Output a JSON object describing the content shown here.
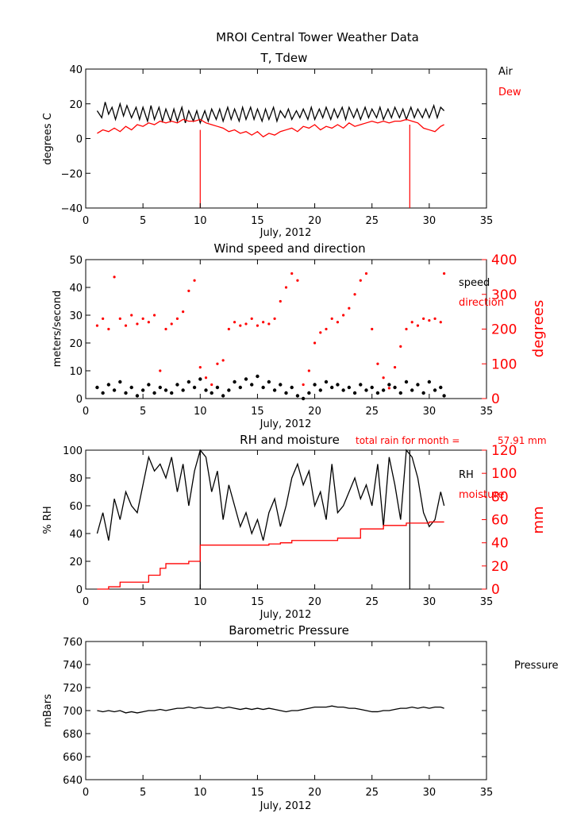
{
  "title": "MROI Central Tower Weather Data",
  "colors": {
    "black": "#000000",
    "red": "#ff0000"
  },
  "chart_data": [
    {
      "id": "temp",
      "type": "line",
      "title": "T, Tdew",
      "xlabel": "July, 2012",
      "ylabel": "degrees C",
      "xlim": [
        0,
        35
      ],
      "ylim": [
        -40,
        40
      ],
      "xticks": [
        "0",
        "5",
        "10",
        "15",
        "20",
        "25",
        "30",
        "35"
      ],
      "yticks": [
        "−40",
        "−20",
        "0",
        "20",
        "40"
      ],
      "legend": [
        {
          "text": "Air",
          "color": "#000000"
        },
        {
          "text": "Dew",
          "color": "#ff0000"
        }
      ],
      "series": [
        {
          "name": "Air",
          "color": "#000000",
          "x": [
            1.0,
            1.4,
            1.7,
            2.0,
            2.3,
            2.6,
            3.0,
            3.3,
            3.6,
            4.0,
            4.4,
            4.7,
            5.0,
            5.4,
            5.7,
            6.0,
            6.4,
            6.7,
            7.0,
            7.4,
            7.7,
            8.0,
            8.4,
            8.7,
            9.0,
            9.4,
            9.7,
            10.0,
            10.4,
            10.7,
            11.0,
            11.4,
            11.7,
            12.0,
            12.4,
            12.7,
            13.0,
            13.4,
            13.7,
            14.0,
            14.4,
            14.7,
            15.0,
            15.4,
            15.7,
            16.0,
            16.4,
            16.7,
            17.0,
            17.4,
            17.7,
            18.0,
            18.4,
            18.7,
            19.0,
            19.4,
            19.7,
            20.0,
            20.4,
            20.7,
            21.0,
            21.4,
            21.7,
            22.0,
            22.4,
            22.7,
            23.0,
            23.4,
            23.7,
            24.0,
            24.4,
            24.7,
            25.0,
            25.4,
            25.7,
            26.0,
            26.4,
            26.7,
            27.0,
            27.4,
            27.7,
            28.0,
            28.4,
            28.7,
            29.0,
            29.4,
            29.7,
            30.0,
            30.4,
            30.7,
            31.0,
            31.3
          ],
          "y": [
            16,
            12,
            21,
            14,
            18,
            11,
            20,
            13,
            19,
            12,
            18,
            11,
            18,
            10,
            19,
            11,
            18,
            10,
            17,
            10,
            17,
            10,
            18,
            9,
            16,
            10,
            16,
            9,
            16,
            10,
            17,
            11,
            17,
            10,
            18,
            11,
            17,
            10,
            18,
            11,
            18,
            11,
            17,
            10,
            17,
            11,
            18,
            10,
            16,
            12,
            17,
            11,
            16,
            12,
            17,
            11,
            18,
            11,
            17,
            12,
            18,
            11,
            17,
            12,
            18,
            11,
            18,
            12,
            17,
            11,
            18,
            12,
            17,
            12,
            18,
            11,
            17,
            12,
            18,
            12,
            17,
            11,
            18,
            12,
            17,
            12,
            17,
            12,
            19,
            12,
            18,
            16
          ]
        },
        {
          "name": "Dew",
          "color": "#ff0000",
          "x": [
            1.0,
            1.5,
            2.0,
            2.5,
            3.0,
            3.5,
            4.0,
            4.5,
            5.0,
            5.5,
            6.0,
            6.5,
            7.0,
            7.5,
            8.0,
            8.5,
            9.0,
            9.5,
            10.0,
            10.5,
            11.0,
            11.5,
            12.0,
            12.5,
            13.0,
            13.5,
            14.0,
            14.5,
            15.0,
            15.5,
            16.0,
            16.5,
            17.0,
            17.5,
            18.0,
            18.5,
            19.0,
            19.5,
            20.0,
            20.5,
            21.0,
            21.5,
            22.0,
            22.5,
            23.0,
            23.5,
            24.0,
            24.5,
            25.0,
            25.5,
            26.0,
            26.5,
            27.0,
            27.5,
            28.0,
            28.5,
            29.0,
            29.5,
            30.0,
            30.5,
            31.0,
            31.3
          ],
          "y": [
            3,
            5,
            4,
            6,
            4,
            7,
            5,
            8,
            7,
            9,
            8,
            10,
            9,
            10,
            9,
            11,
            10,
            10,
            11,
            9,
            8,
            7,
            6,
            4,
            5,
            3,
            4,
            2,
            4,
            1,
            3,
            2,
            4,
            5,
            6,
            4,
            7,
            6,
            8,
            5,
            7,
            6,
            8,
            6,
            9,
            7,
            8,
            9,
            10,
            9,
            10,
            9,
            10,
            10,
            11,
            10,
            9,
            6,
            5,
            4,
            7,
            8
          ]
        }
      ],
      "spikes": [
        {
          "x": 10.0,
          "from": -40,
          "to": 5,
          "color": "#ff0000"
        },
        {
          "x": 28.3,
          "from": -40,
          "to": 8,
          "color": "#ff0000"
        }
      ]
    },
    {
      "id": "wind",
      "type": "scatter",
      "title": "Wind speed and direction",
      "xlabel": "July, 2012",
      "ylabel": "meters/second",
      "ylabel_right": "degrees",
      "xlim": [
        0,
        35
      ],
      "ylim": [
        0,
        50
      ],
      "ylim_right": [
        0,
        400
      ],
      "xticks": [
        "0",
        "5",
        "10",
        "15",
        "20",
        "25",
        "30",
        "35"
      ],
      "yticks": [
        "0",
        "10",
        "20",
        "30",
        "40",
        "50"
      ],
      "yticks_right": [
        "0",
        "100",
        "200",
        "300",
        "400"
      ],
      "legend": [
        {
          "text": "speed",
          "color": "#000000"
        },
        {
          "text": "direction",
          "color": "#ff0000"
        }
      ],
      "series": [
        {
          "name": "speed",
          "color": "#000000",
          "x": [
            1.0,
            1.5,
            2.0,
            2.5,
            3.0,
            3.5,
            4.0,
            4.5,
            5.0,
            5.5,
            6.0,
            6.5,
            7.0,
            7.5,
            8.0,
            8.5,
            9.0,
            9.5,
            10.0,
            10.5,
            11.0,
            11.5,
            12.0,
            12.5,
            13.0,
            13.5,
            14.0,
            14.5,
            15.0,
            15.5,
            16.0,
            16.5,
            17.0,
            17.5,
            18.0,
            18.5,
            19.0,
            19.5,
            20.0,
            20.5,
            21.0,
            21.5,
            22.0,
            22.5,
            23.0,
            23.5,
            24.0,
            24.5,
            25.0,
            25.5,
            26.0,
            26.5,
            27.0,
            27.5,
            28.0,
            28.5,
            29.0,
            29.5,
            30.0,
            30.5,
            31.0,
            31.3
          ],
          "y": [
            4,
            2,
            5,
            3,
            6,
            2,
            4,
            1,
            3,
            5,
            2,
            4,
            3,
            2,
            5,
            3,
            6,
            4,
            7,
            3,
            2,
            4,
            1,
            3,
            6,
            4,
            7,
            5,
            8,
            4,
            6,
            3,
            5,
            2,
            4,
            1,
            0,
            2,
            5,
            3,
            6,
            4,
            5,
            3,
            4,
            2,
            5,
            3,
            4,
            2,
            3,
            5,
            4,
            2,
            6,
            3,
            5,
            2,
            6,
            3,
            4,
            1
          ]
        },
        {
          "name": "direction",
          "color": "#ff0000",
          "axis": "right",
          "x": [
            1.0,
            1.5,
            2.0,
            2.5,
            3.0,
            3.5,
            4.0,
            4.5,
            5.0,
            5.5,
            6.0,
            6.5,
            7.0,
            7.5,
            8.0,
            8.5,
            9.0,
            9.5,
            10.0,
            10.5,
            11.0,
            11.5,
            12.0,
            12.5,
            13.0,
            13.5,
            14.0,
            14.5,
            15.0,
            15.5,
            16.0,
            16.5,
            17.0,
            17.5,
            18.0,
            18.5,
            19.0,
            19.5,
            20.0,
            20.5,
            21.0,
            21.5,
            22.0,
            22.5,
            23.0,
            23.5,
            24.0,
            24.5,
            25.0,
            25.5,
            26.0,
            26.5,
            27.0,
            27.5,
            28.0,
            28.5,
            29.0,
            29.5,
            30.0,
            30.5,
            31.0,
            31.3
          ],
          "y": [
            210,
            230,
            200,
            350,
            230,
            210,
            240,
            215,
            230,
            220,
            240,
            80,
            200,
            215,
            230,
            250,
            310,
            340,
            90,
            60,
            40,
            100,
            110,
            200,
            220,
            210,
            215,
            230,
            210,
            220,
            215,
            230,
            280,
            320,
            360,
            340,
            40,
            80,
            160,
            190,
            200,
            230,
            220,
            240,
            260,
            300,
            340,
            360,
            200,
            100,
            60,
            30,
            90,
            150,
            200,
            220,
            210,
            230,
            225,
            230,
            220,
            360
          ]
        }
      ]
    },
    {
      "id": "rh",
      "type": "line",
      "title": "RH and moisture",
      "annotation_label": "total rain for month =",
      "annotation_value": "57.91 mm",
      "xlabel": "July, 2012",
      "ylabel": "% RH",
      "ylabel_right": "mm",
      "xlim": [
        0,
        35
      ],
      "ylim": [
        0,
        100
      ],
      "ylim_right": [
        0,
        120
      ],
      "xticks": [
        "0",
        "5",
        "10",
        "15",
        "20",
        "25",
        "30",
        "35"
      ],
      "yticks": [
        "0",
        "20",
        "40",
        "60",
        "80",
        "100"
      ],
      "yticks_right": [
        "0",
        "20",
        "40",
        "60",
        "80",
        "100",
        "120"
      ],
      "legend": [
        {
          "text": "RH",
          "color": "#000000"
        },
        {
          "text": "moisture",
          "color": "#ff0000"
        }
      ],
      "series": [
        {
          "name": "RH",
          "color": "#000000",
          "x": [
            1.0,
            1.5,
            2.0,
            2.5,
            3.0,
            3.5,
            4.0,
            4.5,
            5.0,
            5.5,
            6.0,
            6.5,
            7.0,
            7.5,
            8.0,
            8.5,
            9.0,
            9.5,
            10.0,
            10.5,
            11.0,
            11.5,
            12.0,
            12.5,
            13.0,
            13.5,
            14.0,
            14.5,
            15.0,
            15.5,
            16.0,
            16.5,
            17.0,
            17.5,
            18.0,
            18.5,
            19.0,
            19.5,
            20.0,
            20.5,
            21.0,
            21.5,
            22.0,
            22.5,
            23.0,
            23.5,
            24.0,
            24.5,
            25.0,
            25.5,
            26.0,
            26.5,
            27.0,
            27.5,
            28.0,
            28.5,
            29.0,
            29.5,
            30.0,
            30.5,
            31.0,
            31.3
          ],
          "y": [
            40,
            55,
            35,
            65,
            50,
            70,
            60,
            55,
            75,
            95,
            85,
            90,
            80,
            95,
            70,
            90,
            60,
            85,
            100,
            95,
            70,
            85,
            50,
            75,
            60,
            45,
            55,
            40,
            50,
            35,
            55,
            65,
            45,
            60,
            80,
            90,
            75,
            85,
            60,
            70,
            50,
            90,
            55,
            60,
            70,
            80,
            65,
            75,
            60,
            90,
            45,
            95,
            75,
            50,
            100,
            95,
            80,
            55,
            45,
            50,
            70,
            60
          ]
        },
        {
          "name": "moisture",
          "color": "#ff0000",
          "axis": "right",
          "step": true,
          "x": [
            1.0,
            2.0,
            3.0,
            4.0,
            5.0,
            5.5,
            6.0,
            6.5,
            7.0,
            8.0,
            9.0,
            9.9,
            10.0,
            11.0,
            12.0,
            14.0,
            16.0,
            17.0,
            18.0,
            20.0,
            22.0,
            23.0,
            24.0,
            25.0,
            26.0,
            27.0,
            28.0,
            29.0,
            30.0,
            31.3
          ],
          "y": [
            0,
            2,
            6,
            6,
            6,
            12,
            12,
            18,
            22,
            22,
            24,
            24,
            38,
            38,
            38,
            38,
            39,
            40,
            42,
            42,
            44,
            44,
            52,
            52,
            55,
            55,
            57,
            57,
            58,
            58
          ]
        }
      ],
      "spikes": [
        {
          "x": 10.0,
          "from": 0,
          "to": 100,
          "color": "#000000"
        },
        {
          "x": 28.3,
          "from": 0,
          "to": 100,
          "color": "#000000"
        }
      ]
    },
    {
      "id": "pressure",
      "type": "line",
      "title": "Barometric Pressure",
      "xlabel": "July, 2012",
      "ylabel": "mBars",
      "xlim": [
        0,
        35
      ],
      "ylim": [
        640,
        760
      ],
      "xticks": [
        "0",
        "5",
        "10",
        "15",
        "20",
        "25",
        "30",
        "35"
      ],
      "yticks": [
        "640",
        "660",
        "680",
        "700",
        "720",
        "740",
        "760"
      ],
      "legend": [
        {
          "text": "Pressure",
          "color": "#000000"
        }
      ],
      "series": [
        {
          "name": "Pressure",
          "color": "#000000",
          "x": [
            1.0,
            1.5,
            2.0,
            2.5,
            3.0,
            3.5,
            4.0,
            4.5,
            5.0,
            5.5,
            6.0,
            6.5,
            7.0,
            7.5,
            8.0,
            8.5,
            9.0,
            9.5,
            10.0,
            10.5,
            11.0,
            11.5,
            12.0,
            12.5,
            13.0,
            13.5,
            14.0,
            14.5,
            15.0,
            15.5,
            16.0,
            16.5,
            17.0,
            17.5,
            18.0,
            18.5,
            19.0,
            19.5,
            20.0,
            20.5,
            21.0,
            21.5,
            22.0,
            22.5,
            23.0,
            23.5,
            24.0,
            24.5,
            25.0,
            25.5,
            26.0,
            26.5,
            27.0,
            27.5,
            28.0,
            28.5,
            29.0,
            29.5,
            30.0,
            30.5,
            31.0,
            31.3
          ],
          "y": [
            700,
            699,
            700,
            699,
            700,
            698,
            699,
            698,
            699,
            700,
            700,
            701,
            700,
            701,
            702,
            702,
            703,
            702,
            703,
            702,
            702,
            703,
            702,
            703,
            702,
            701,
            702,
            701,
            702,
            701,
            702,
            701,
            700,
            699,
            700,
            700,
            701,
            702,
            703,
            703,
            703,
            704,
            703,
            703,
            702,
            702,
            701,
            700,
            699,
            699,
            700,
            700,
            701,
            702,
            702,
            703,
            702,
            703,
            702,
            703,
            703,
            702
          ]
        }
      ]
    }
  ]
}
